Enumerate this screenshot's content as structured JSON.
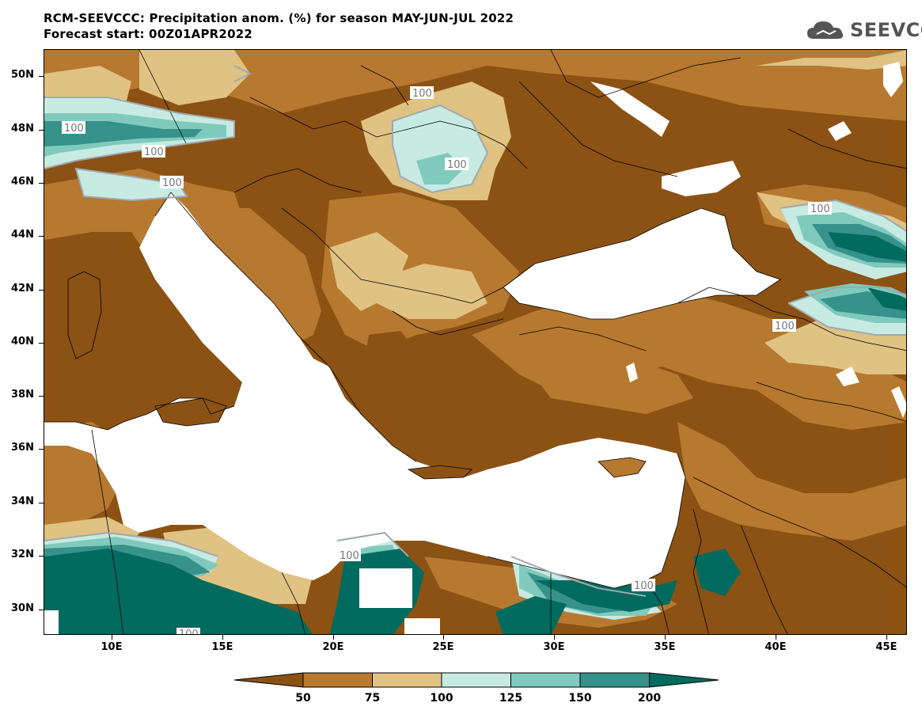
{
  "header": {
    "title_line1": "RCM-SEEVCCC: Precipitation anom. (%) for season MAY-JUN-JUL 2022",
    "title_line2": "Forecast start: 00Z01APR2022"
  },
  "logo": {
    "text": "SEEVCCC",
    "icon": "cloud-icon"
  },
  "map": {
    "lat_labels": [
      "50N",
      "48N",
      "46N",
      "44N",
      "42N",
      "40N",
      "38N",
      "36N",
      "34N",
      "32N",
      "30N"
    ],
    "lon_labels": [
      "10E",
      "15E",
      "20E",
      "25E",
      "30E",
      "35E",
      "40E",
      "45E"
    ],
    "contour_label": "100"
  },
  "colorbar": {
    "labels": [
      "50",
      "75",
      "100",
      "125",
      "150",
      "200"
    ],
    "colors": [
      "#8b5214",
      "#b7792f",
      "#e0c283",
      "#c7ebe3",
      "#7fcabc",
      "#36928a",
      "#006b5e"
    ]
  }
}
